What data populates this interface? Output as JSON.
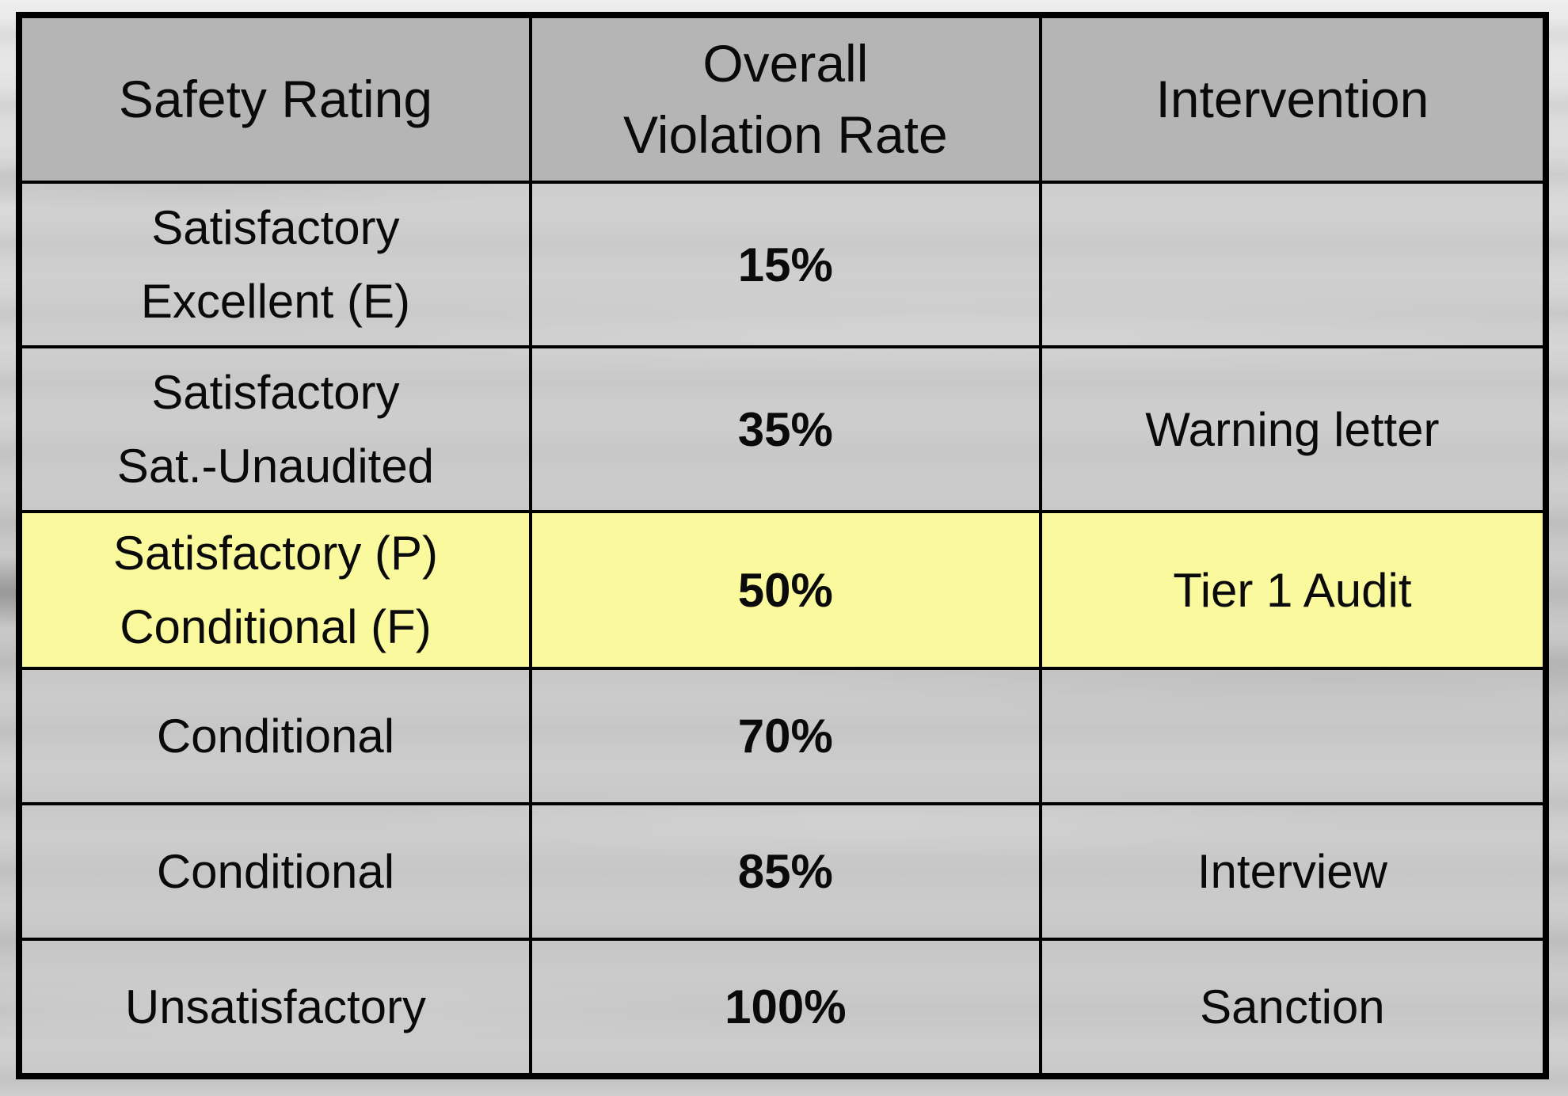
{
  "table": {
    "title_semantics": "safety rating intervention matrix",
    "columns": {
      "safety_rating": "Safety Rating",
      "violation_rate": "Overall\nViolation Rate",
      "intervention": "Intervention"
    },
    "rows": [
      {
        "rating": "Satisfactory\nExcellent (E)",
        "rate": "15%",
        "intervention": "",
        "highlighted": false
      },
      {
        "rating": "Satisfactory\nSat.-Unaudited",
        "rate": "35%",
        "intervention": "Warning letter",
        "highlighted": false
      },
      {
        "rating": "Satisfactory (P)\nConditional (F)",
        "rate": "50%",
        "intervention": "Tier 1 Audit",
        "highlighted": true
      },
      {
        "rating": "Conditional",
        "rate": "70%",
        "intervention": "",
        "highlighted": false
      },
      {
        "rating": "Conditional",
        "rate": "85%",
        "intervention": "Interview",
        "highlighted": false
      },
      {
        "rating": "Unsatisfactory",
        "rate": "100%",
        "intervention": "Sanction",
        "highlighted": false
      }
    ],
    "colors": {
      "header_bg": "#b5b5b5",
      "row_bg": "#c9c9c9",
      "highlight_bg": "#fbf99e",
      "border": "#000000",
      "text": "#0a0a0a"
    }
  }
}
